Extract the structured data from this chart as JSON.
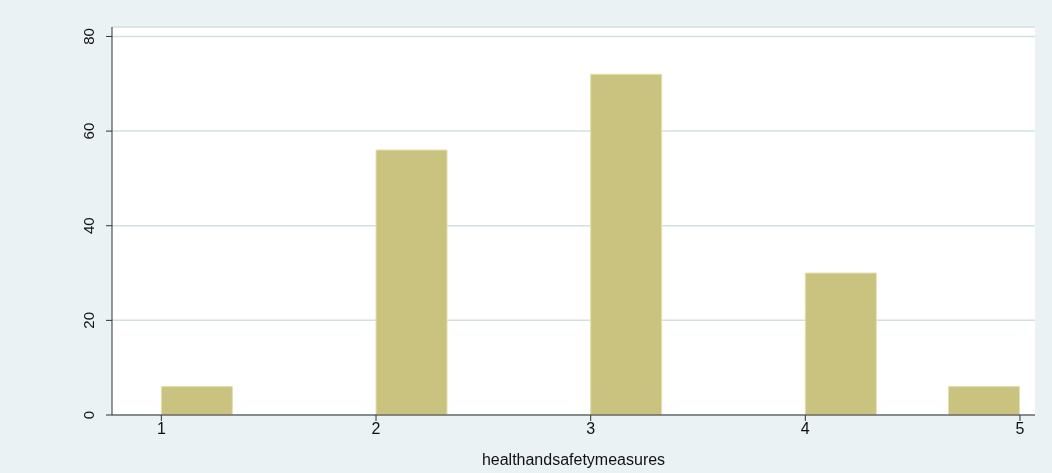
{
  "chart_data": {
    "type": "histogram",
    "xlabel": "healthandsafetymeasures",
    "bins": [
      1,
      1.333,
      1.667,
      2,
      2.333,
      2.667,
      3,
      3.333,
      3.667,
      4,
      4.333,
      4.667,
      5
    ],
    "values": [
      6,
      0,
      0,
      56,
      0,
      0,
      72,
      0,
      0,
      30,
      0,
      6
    ],
    "color": "#c9c37f",
    "xlim": [
      0.77,
      5.07
    ],
    "xticks": [
      1,
      2,
      3,
      4,
      5
    ],
    "ylim": [
      0,
      82
    ],
    "yticks": [
      0,
      20,
      40,
      60,
      80
    ],
    "grid": "y"
  }
}
